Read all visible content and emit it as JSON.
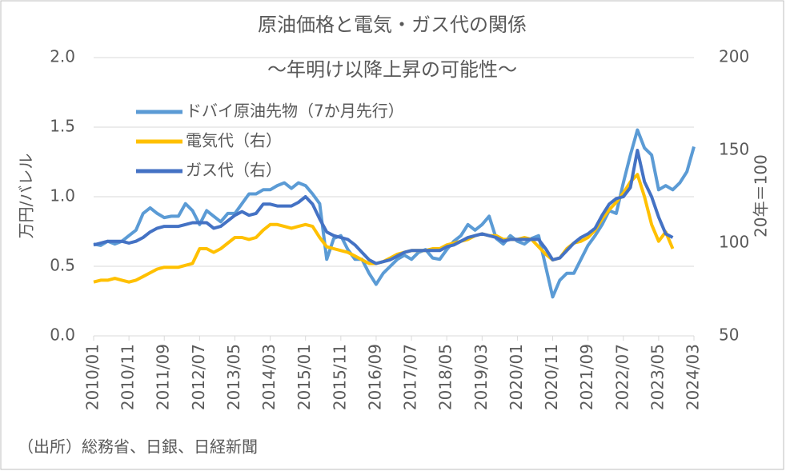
{
  "chart_data": {
    "type": "line",
    "title": "原油価格と電気・ガス代の関係",
    "subtitle": "～年明け以降上昇の可能性～",
    "y_label": "万円/バレル",
    "y2_label": "20年＝100",
    "source": "（出所）総務省、日銀、日経新聞",
    "x": [
      "2010/01",
      "2010/03",
      "2010/05",
      "2010/07",
      "2010/09",
      "2010/11",
      "2011/01",
      "2011/03",
      "2011/05",
      "2011/07",
      "2011/09",
      "2011/11",
      "2012/01",
      "2012/03",
      "2012/05",
      "2012/07",
      "2012/09",
      "2012/11",
      "2013/01",
      "2013/03",
      "2013/05",
      "2013/07",
      "2013/09",
      "2013/11",
      "2014/01",
      "2014/03",
      "2014/05",
      "2014/07",
      "2014/09",
      "2014/11",
      "2015/01",
      "2015/03",
      "2015/05",
      "2015/07",
      "2015/09",
      "2015/11",
      "2016/01",
      "2016/03",
      "2016/05",
      "2016/07",
      "2016/09",
      "2016/11",
      "2017/01",
      "2017/03",
      "2017/05",
      "2017/07",
      "2017/09",
      "2017/11",
      "2018/01",
      "2018/03",
      "2018/05",
      "2018/07",
      "2018/09",
      "2018/11",
      "2019/01",
      "2019/03",
      "2019/05",
      "2019/07",
      "2019/09",
      "2019/11",
      "2020/01",
      "2020/03",
      "2020/05",
      "2020/07",
      "2020/09",
      "2020/11",
      "2021/01",
      "2021/03",
      "2021/05",
      "2021/07",
      "2021/09",
      "2021/11",
      "2022/01",
      "2022/03",
      "2022/05",
      "2022/07",
      "2022/09",
      "2022/11",
      "2023/01",
      "2023/03",
      "2023/05",
      "2023/07",
      "2023/09",
      "2023/11",
      "2024/01",
      "2024/03"
    ],
    "xticks": [
      "2010/01",
      "2010/11",
      "2011/09",
      "2012/07",
      "2013/05",
      "2014/03",
      "2015/01",
      "2015/11",
      "2016/09",
      "2017/07",
      "2018/05",
      "2019/03",
      "2020/01",
      "2020/11",
      "2021/09",
      "2022/07",
      "2023/05",
      "2024/03"
    ],
    "series": [
      {
        "name": "ドバイ原油先物（7か月先行）",
        "color": "#5b9bd5",
        "axis": "y",
        "values": [
          0.66,
          0.65,
          0.68,
          0.66,
          0.68,
          0.72,
          0.76,
          0.88,
          0.92,
          0.88,
          0.85,
          0.86,
          0.86,
          0.95,
          0.9,
          0.8,
          0.9,
          0.86,
          0.82,
          0.88,
          0.88,
          0.95,
          1.02,
          1.02,
          1.05,
          1.05,
          1.08,
          1.1,
          1.06,
          1.1,
          1.08,
          1.02,
          0.95,
          0.55,
          0.7,
          0.72,
          0.62,
          0.55,
          0.55,
          0.45,
          0.37,
          0.45,
          0.5,
          0.55,
          0.58,
          0.55,
          0.6,
          0.62,
          0.56,
          0.55,
          0.62,
          0.68,
          0.72,
          0.8,
          0.76,
          0.8,
          0.86,
          0.7,
          0.66,
          0.72,
          0.68,
          0.66,
          0.7,
          0.72,
          0.5,
          0.28,
          0.4,
          0.45,
          0.45,
          0.55,
          0.65,
          0.72,
          0.8,
          0.9,
          0.88,
          1.1,
          1.3,
          1.48,
          1.35,
          1.3,
          1.05,
          1.08,
          1.05,
          1.1,
          1.18,
          1.36
        ]
      },
      {
        "name": "電気代（右）",
        "color": "#ffc000",
        "axis": "y2",
        "values": [
          79,
          80,
          80,
          81,
          80,
          79,
          80,
          82,
          84,
          86,
          87,
          87,
          87,
          88,
          89,
          97,
          97,
          95,
          97,
          100,
          103,
          103,
          102,
          103,
          107,
          110,
          110,
          109,
          108,
          109,
          110,
          109,
          103,
          98,
          97,
          96,
          95,
          93,
          91,
          89,
          89,
          90,
          92,
          94,
          95,
          96,
          96,
          96,
          97,
          97,
          99,
          100,
          101,
          102,
          104,
          105,
          104,
          104,
          102,
          102,
          102,
          103,
          102,
          98,
          94,
          91,
          92,
          97,
          100,
          101,
          103,
          107,
          113,
          118,
          122,
          127,
          133,
          137,
          125,
          110,
          101,
          106,
          97,
          null,
          null,
          null
        ]
      },
      {
        "name": "ガス代（右）",
        "color": "#4472c4",
        "axis": "y2",
        "values": [
          99,
          100,
          101,
          101,
          101,
          100,
          101,
          103,
          106,
          108,
          109,
          109,
          109,
          110,
          111,
          111,
          111,
          108,
          109,
          112,
          115,
          117,
          115,
          116,
          121,
          121,
          120,
          120,
          120,
          122,
          125,
          121,
          113,
          106,
          104,
          103,
          102,
          99,
          95,
          91,
          89,
          90,
          91,
          93,
          95,
          96,
          96,
          96,
          96,
          96,
          98,
          99,
          101,
          103,
          104,
          105,
          104,
          103,
          101,
          102,
          102,
          102,
          102,
          102,
          97,
          91,
          92,
          96,
          100,
          103,
          105,
          108,
          115,
          121,
          124,
          125,
          130,
          150,
          133,
          125,
          114,
          105,
          103,
          null,
          null,
          null
        ]
      }
    ],
    "ylim": [
      0,
      2
    ],
    "yticks": [
      {
        "value": 0,
        "label": "0.0"
      },
      {
        "value": 0.5,
        "label": "0.5"
      },
      {
        "value": 1,
        "label": "1.0"
      },
      {
        "value": 1.5,
        "label": "1.5"
      },
      {
        "value": 2,
        "label": "2.0"
      }
    ],
    "y2lim": [
      50,
      200
    ],
    "y2ticks": [
      50,
      100,
      150,
      200
    ],
    "grid": true
  }
}
